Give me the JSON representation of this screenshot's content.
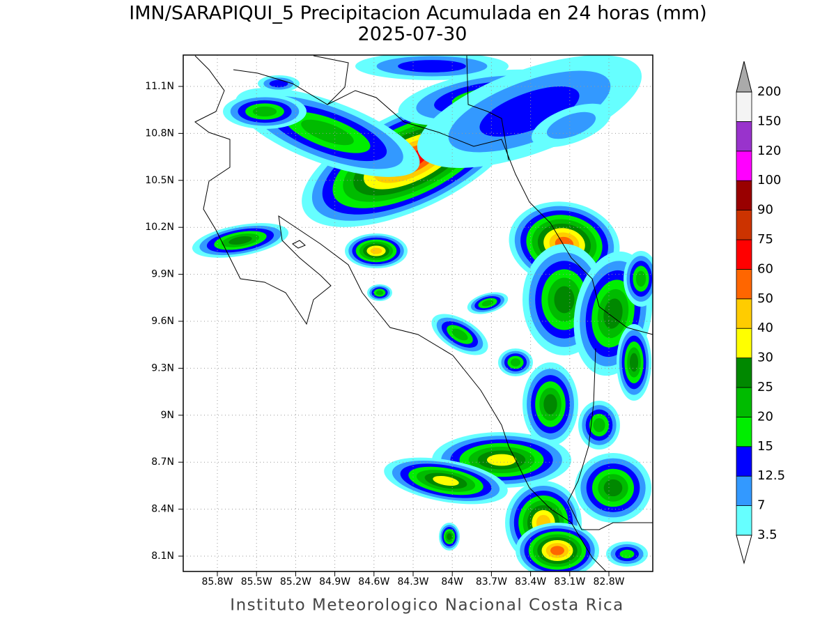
{
  "title": "IMN/SARAPIQUI_5 Precipitacion Acumulada en 24 horas (mm)",
  "subtitle": "2025-07-30",
  "footer": "Instituto Meteorologico Nacional Costa Rica",
  "lat_labels": [
    "11.1N",
    "10.8N",
    "10.5N",
    "10.2N",
    "9.9N",
    "9.6N",
    "9.3N",
    "9N",
    "8.7N",
    "8.4N",
    "8.1N"
  ],
  "lon_labels": [
    "85.8W",
    "85.5W",
    "85.2W",
    "84.9W",
    "84.6W",
    "84.3W",
    "84W",
    "83.7W",
    "83.4W",
    "83.1W",
    "82.8W"
  ],
  "colorbar": {
    "levels": [
      "3.5",
      "7",
      "12.5",
      "15",
      "20",
      "25",
      "30",
      "40",
      "50",
      "60",
      "75",
      "90",
      "100",
      "120",
      "150",
      "200"
    ],
    "colors": [
      "#66ffff",
      "#3399ff",
      "#0000ff",
      "#00ee00",
      "#00bb00",
      "#008800",
      "#ffff00",
      "#ffcc00",
      "#ff6600",
      "#ff0000",
      "#cc3300",
      "#990000",
      "#ff00ff",
      "#9933cc",
      "#f4f4f4"
    ],
    "over_color": "#aaaaaa",
    "under_color": "#ffffff"
  }
}
